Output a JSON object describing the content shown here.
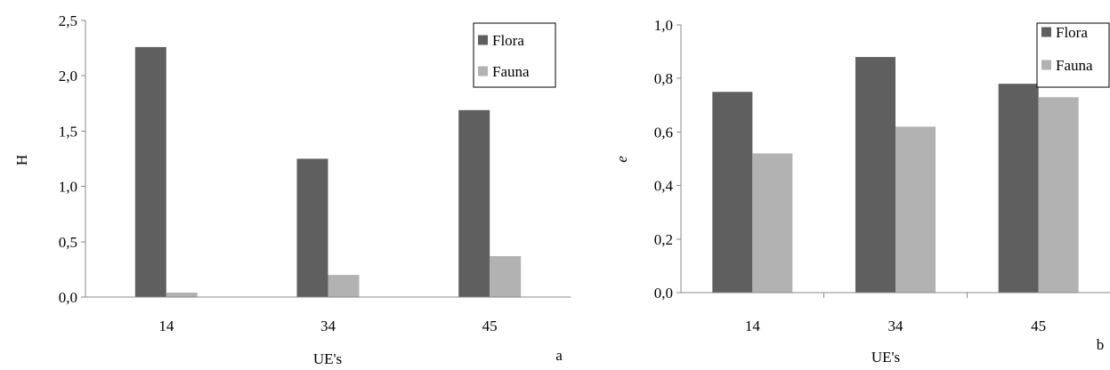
{
  "chart_data": [
    {
      "type": "bar",
      "title": "",
      "xlabel": "UE's",
      "ylabel": "H",
      "panel_label": "a",
      "categories": [
        "14",
        "34",
        "45"
      ],
      "ylim": [
        0,
        2.5
      ],
      "yticks": [
        0,
        0.5,
        1.0,
        1.5,
        2.0,
        2.5
      ],
      "ytick_labels": [
        "0,0",
        "0,5",
        "1,0",
        "1,5",
        "2,0",
        "2,5"
      ],
      "grid": false,
      "legend_position": "top-right",
      "series": [
        {
          "name": "Flora",
          "color": "#5f5f5f",
          "values": [
            2.26,
            1.25,
            1.69
          ]
        },
        {
          "name": "Fauna",
          "color": "#b2b2b2",
          "values": [
            0.04,
            0.2,
            0.37
          ]
        }
      ]
    },
    {
      "type": "bar",
      "title": "",
      "xlabel": "UE's",
      "ylabel": "e",
      "panel_label": "b",
      "categories": [
        "14",
        "34",
        "45"
      ],
      "ylim": [
        0,
        1.0
      ],
      "yticks": [
        0,
        0.2,
        0.4,
        0.6,
        0.8,
        1.0
      ],
      "ytick_labels": [
        "0,0",
        "0,2",
        "0,4",
        "0,6",
        "0,8",
        "1,0"
      ],
      "grid": false,
      "legend_position": "top-right",
      "series": [
        {
          "name": "Flora",
          "color": "#5f5f5f",
          "values": [
            0.75,
            0.88,
            0.78
          ]
        },
        {
          "name": "Fauna",
          "color": "#b2b2b2",
          "values": [
            0.52,
            0.62,
            0.73
          ]
        }
      ]
    }
  ]
}
